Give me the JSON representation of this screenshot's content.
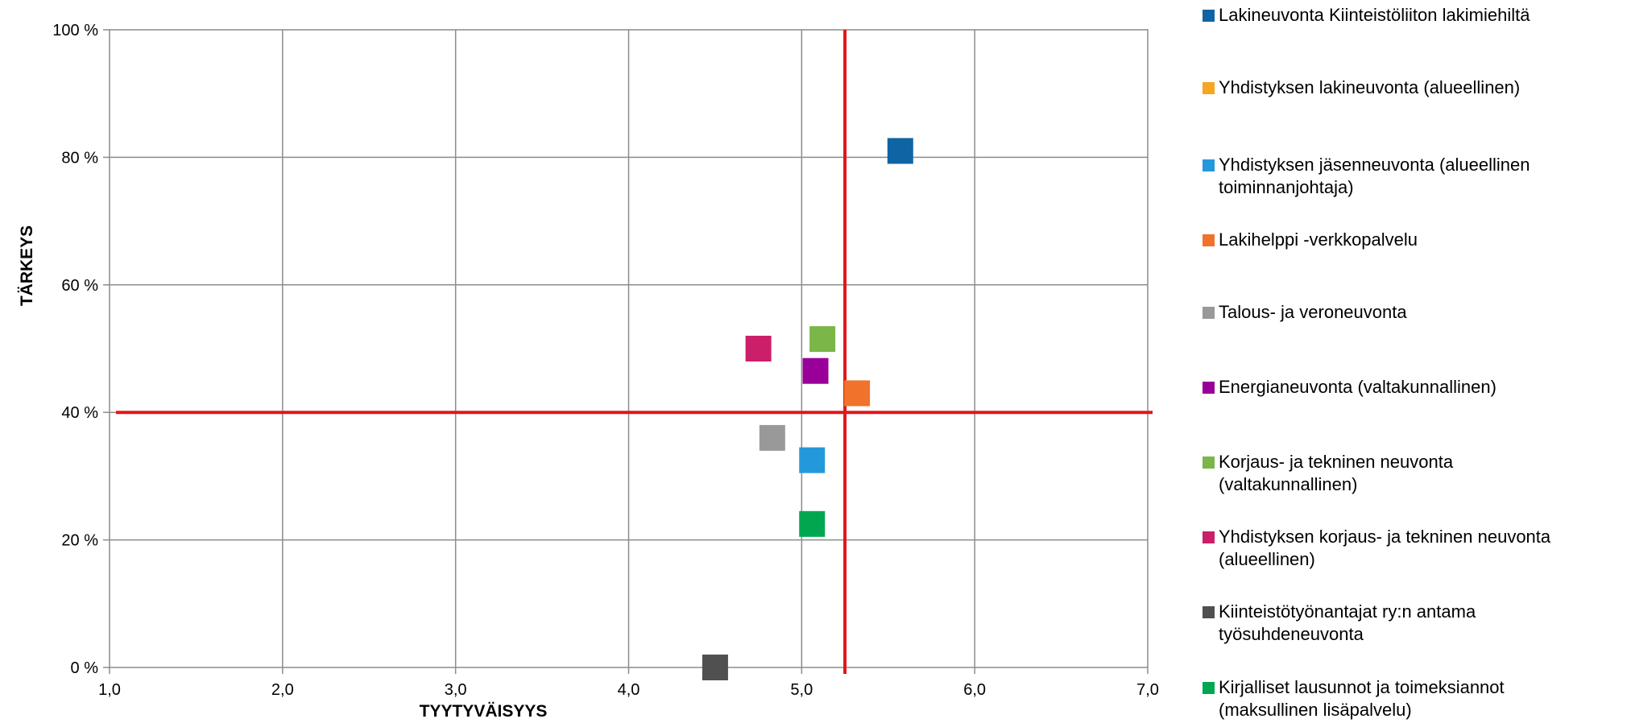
{
  "chart_data": {
    "type": "scatter",
    "xlabel": "TYYTYVÄISYYS",
    "ylabel": "TÄRKEYS",
    "xlim": [
      1.0,
      7.0
    ],
    "ylim": [
      0,
      100
    ],
    "x_ticks": [
      "1,0",
      "2,0",
      "3,0",
      "4,0",
      "5,0",
      "6,0",
      "7,0"
    ],
    "y_ticks": [
      "0 %",
      "20 %",
      "40 %",
      "60 %",
      "80 %",
      "100 %"
    ],
    "grid": true,
    "legend_position": "right",
    "reference_lines": {
      "x": 5.25,
      "y": 40,
      "color": "#e0161b"
    },
    "series": [
      {
        "name": "Lakineuvonta Kiinteistöliiton lakimiehiltä",
        "color": "#0f64a3",
        "x": 5.57,
        "y": 81
      },
      {
        "name": "Yhdistyksen lakineuvonta (alueellinen)",
        "color": "#f6a623",
        "x": null,
        "y": null
      },
      {
        "name": "Yhdistyksen jäsenneuvonta (alueellinen toiminnanjohtaja)",
        "color": "#2399dc",
        "x": 5.06,
        "y": 32.5
      },
      {
        "name": "Lakihelppi -verkkopalvelu",
        "color": "#f0722b",
        "x": 5.32,
        "y": 43
      },
      {
        "name": "Talous- ja veroneuvonta",
        "color": "#999999",
        "x": 4.83,
        "y": 36
      },
      {
        "name": "Energianeuvonta (valtakunnallinen)",
        "color": "#990099",
        "x": 5.08,
        "y": 46.5
      },
      {
        "name": "Korjaus- ja tekninen neuvonta (valtakunnallinen)",
        "color": "#7ab648",
        "x": 5.12,
        "y": 51.5
      },
      {
        "name": "Yhdistyksen korjaus- ja tekninen neuvonta (alueellinen)",
        "color": "#cc1f6a",
        "x": 4.75,
        "y": 50
      },
      {
        "name": "Kiinteistötyönantajat ry:n antama työsuhdeneuvonta",
        "color": "#505050",
        "x": 4.5,
        "y": 0
      },
      {
        "name": "Kirjalliset lausunnot ja toimeksiannot (maksullinen lisäpalvelu)",
        "color": "#00a650",
        "x": 5.06,
        "y": 22.5
      }
    ]
  }
}
